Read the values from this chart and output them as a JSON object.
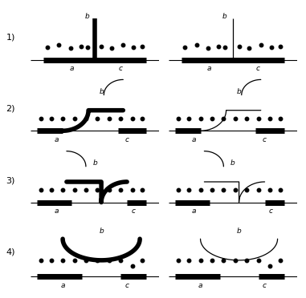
{
  "row_labels": [
    "1)",
    "2)",
    "3)",
    "4)"
  ],
  "background_color": "#ffffff",
  "road_color": "#000000",
  "dot_color": "#000000",
  "thick_lw": 4.0,
  "thin_lw": 0.9,
  "road_thin_lw": 0.8,
  "road_thick_lw": 5.0
}
